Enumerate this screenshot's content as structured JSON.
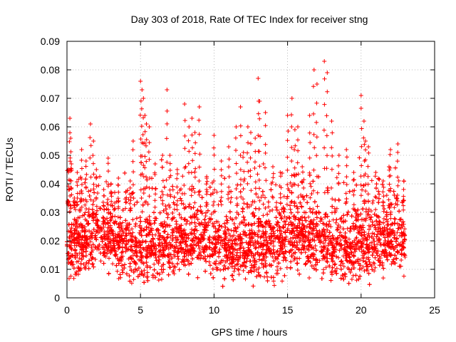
{
  "chart_data": {
    "type": "scatter",
    "title": "Day 303 of 2018, Rate Of TEC Index for receiver stng",
    "xlabel": "GPS time / hours",
    "ylabel": "ROTI / TECUs",
    "xlim": [
      0,
      25
    ],
    "ylim": [
      0,
      0.09
    ],
    "x_ticks": [
      "0",
      "5",
      "10",
      "15",
      "20",
      "25"
    ],
    "y_ticks": [
      "0",
      "0.01",
      "0.02",
      "0.03",
      "0.04",
      "0.05",
      "0.06",
      "0.07",
      "0.08",
      "0.09"
    ],
    "grid": true,
    "marker": "plus",
    "color": "#ff0000",
    "data_x_range": [
      0,
      23
    ],
    "series": [
      {
        "values_note": "dense ROTI samples; core mostly 0.01–0.03 TECU/min",
        "x": [
          0.1,
          0.2,
          0.25,
          0.3,
          0.5,
          0.7,
          1.0,
          1.3,
          1.6,
          1.8,
          2.0,
          2.5,
          2.8,
          3.0,
          3.5,
          4.0,
          4.3,
          4.5,
          5.0,
          5.1,
          5.2,
          5.3,
          5.4,
          5.6,
          6.0,
          6.5,
          6.8,
          7.0,
          7.5,
          8.0,
          8.3,
          8.5,
          8.7,
          9.0,
          9.5,
          10.0,
          10.5,
          11.0,
          11.5,
          11.8,
          12.0,
          12.3,
          12.5,
          12.8,
          13.0,
          13.1,
          13.5,
          14.0,
          14.5,
          15.0,
          15.3,
          15.5,
          15.7,
          16.0,
          16.5,
          16.8,
          17.0,
          17.5,
          17.7,
          18.0,
          18.5,
          19.0,
          19.5,
          20.0,
          20.2,
          20.3,
          20.5,
          21.0,
          21.5,
          21.9,
          22.0,
          22.5,
          22.9
        ],
        "y": [
          0.045,
          0.063,
          0.056,
          0.047,
          0.035,
          0.044,
          0.052,
          0.048,
          0.061,
          0.055,
          0.045,
          0.038,
          0.049,
          0.04,
          0.042,
          0.037,
          0.041,
          0.055,
          0.076,
          0.073,
          0.07,
          0.064,
          0.061,
          0.06,
          0.047,
          0.05,
          0.073,
          0.05,
          0.045,
          0.068,
          0.06,
          0.063,
          0.058,
          0.067,
          0.042,
          0.057,
          0.048,
          0.053,
          0.06,
          0.067,
          0.051,
          0.06,
          0.058,
          0.056,
          0.077,
          0.069,
          0.065,
          0.046,
          0.044,
          0.064,
          0.07,
          0.059,
          0.06,
          0.046,
          0.064,
          0.08,
          0.075,
          0.083,
          0.079,
          0.062,
          0.05,
          0.052,
          0.044,
          0.071,
          0.062,
          0.055,
          0.053,
          0.044,
          0.041,
          0.046,
          0.052,
          0.054,
          0.041
        ]
      }
    ]
  }
}
